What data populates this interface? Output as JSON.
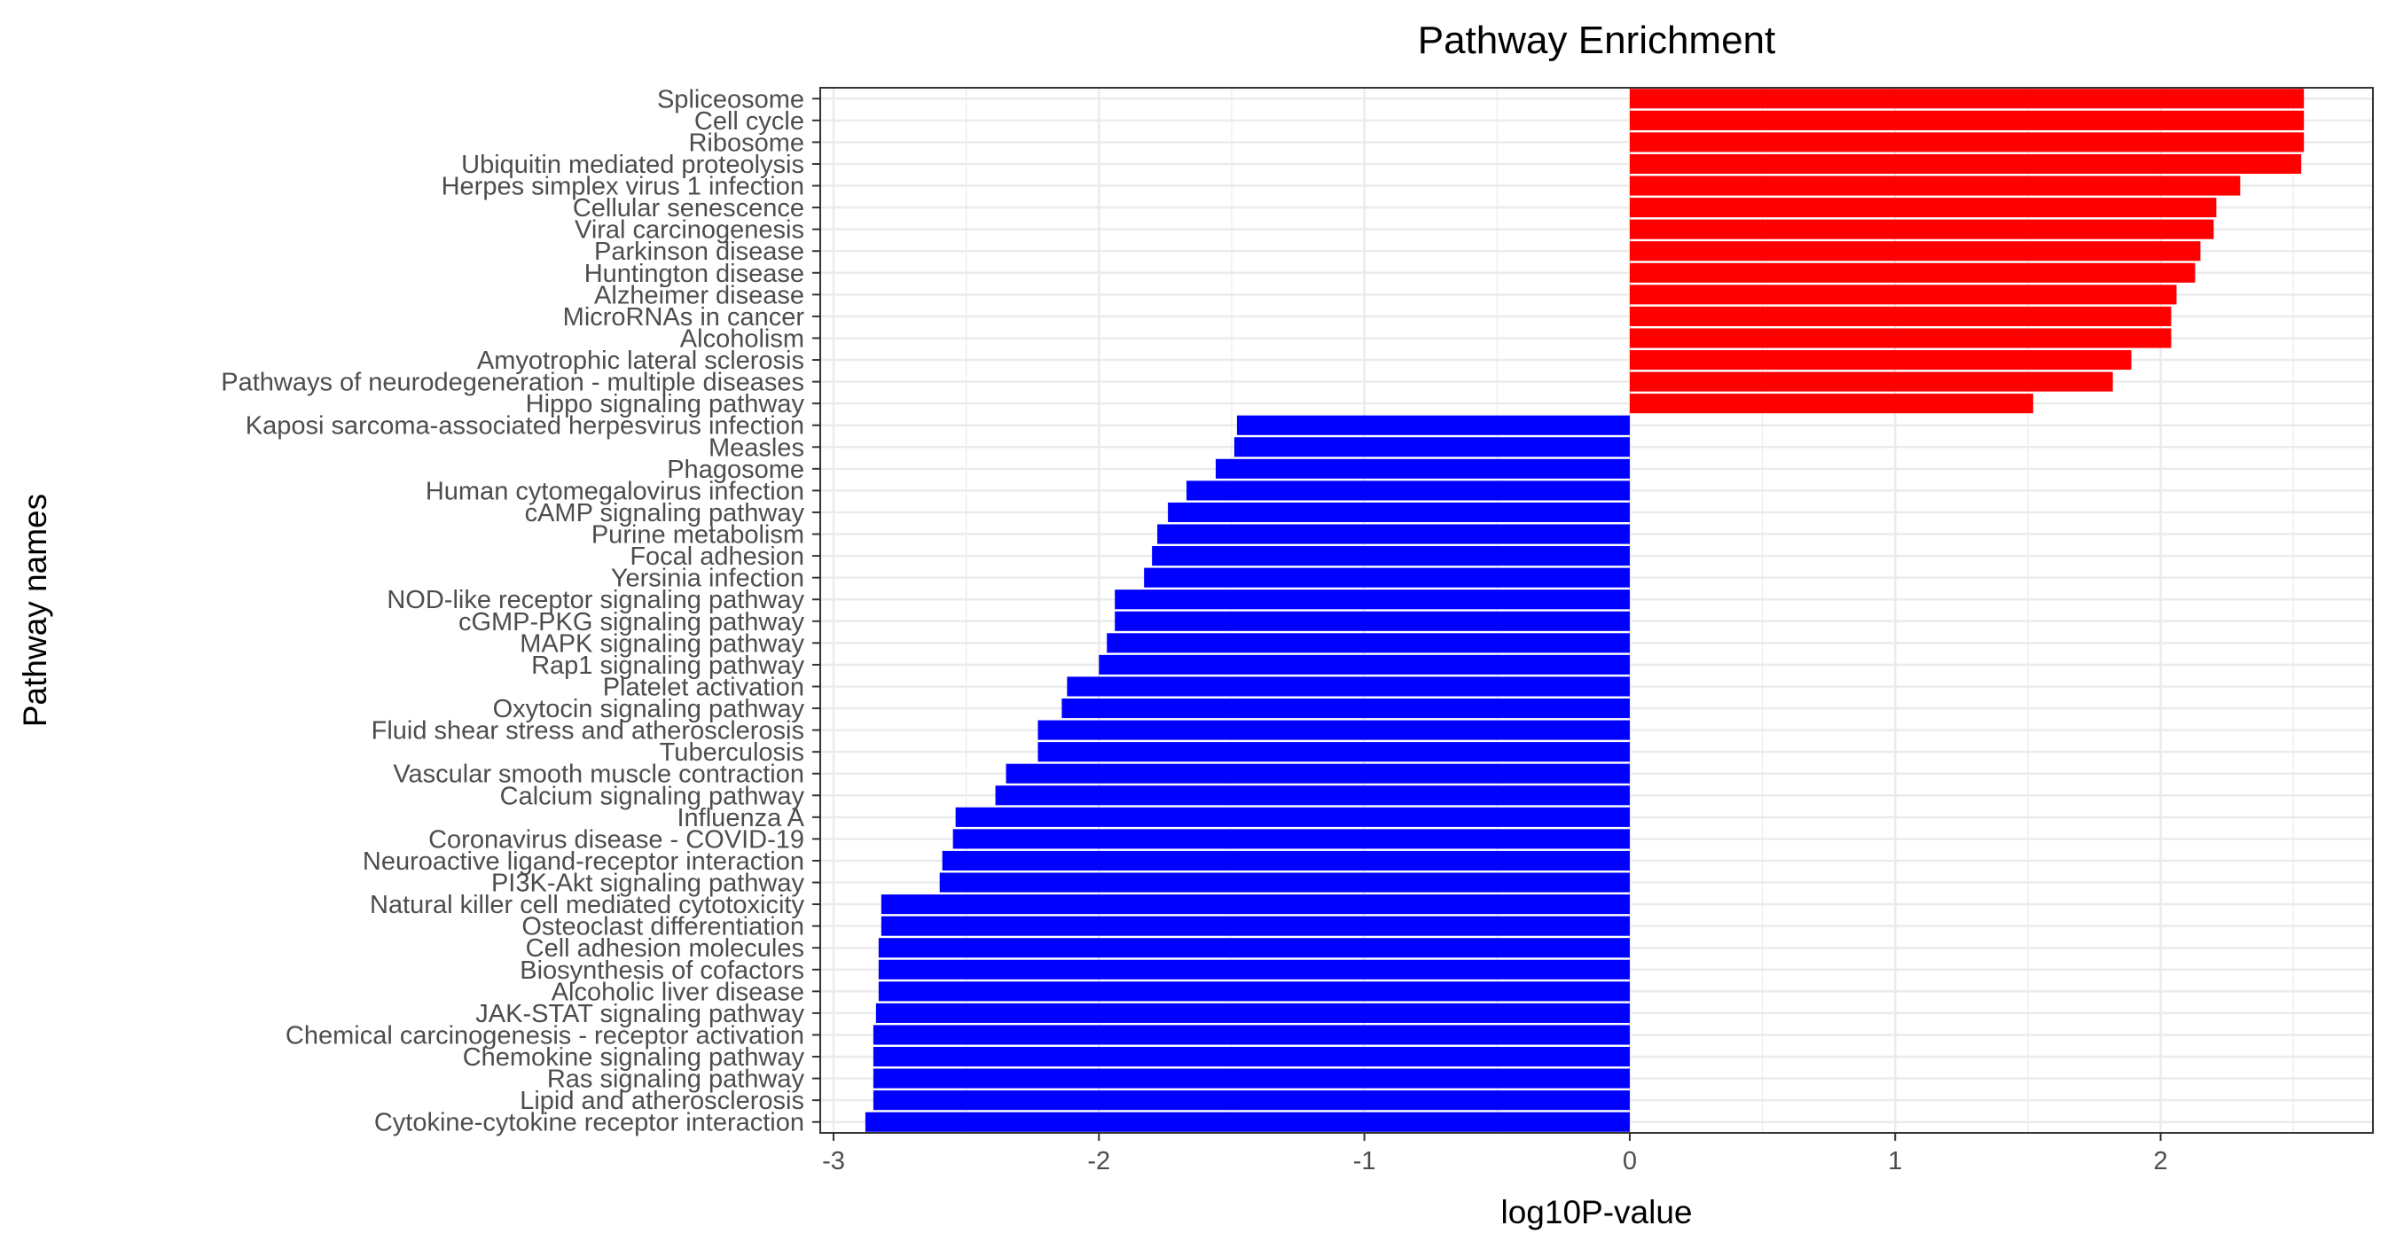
{
  "chart_data": {
    "type": "bar",
    "orientation": "horizontal",
    "title": "Pathway Enrichment",
    "xlabel": "log10P-value",
    "ylabel": "Pathway names",
    "xlim": [
      -3.05,
      2.8
    ],
    "xticks": [
      -3,
      -2,
      -1,
      0,
      1,
      2
    ],
    "grid": true,
    "legend": "none",
    "colors": {
      "positive": "#ff0000",
      "negative": "#0000ff"
    },
    "categories": [
      "Spliceosome",
      "Cell cycle",
      "Ribosome",
      "Ubiquitin mediated proteolysis",
      "Herpes simplex virus 1 infection",
      "Cellular senescence",
      "Viral carcinogenesis",
      "Parkinson disease",
      "Huntington disease",
      "Alzheimer disease",
      "MicroRNAs in cancer",
      "Alcoholism",
      "Amyotrophic lateral sclerosis",
      "Pathways of neurodegeneration - multiple diseases",
      "Hippo signaling pathway",
      "Kaposi sarcoma-associated herpesvirus infection",
      "Measles",
      "Phagosome",
      "Human cytomegalovirus infection",
      "cAMP signaling pathway",
      "Purine metabolism",
      "Focal adhesion",
      "Yersinia infection",
      "NOD-like receptor signaling pathway",
      "cGMP-PKG signaling pathway",
      "MAPK signaling pathway",
      "Rap1 signaling pathway",
      "Platelet activation",
      "Oxytocin signaling pathway",
      "Fluid shear stress and atherosclerosis",
      "Tuberculosis",
      "Vascular smooth muscle contraction",
      "Calcium signaling pathway",
      "Influenza A",
      "Coronavirus disease - COVID-19",
      "Neuroactive ligand-receptor interaction",
      "PI3K-Akt signaling pathway",
      "Natural killer cell mediated cytotoxicity",
      "Osteoclast differentiation",
      "Cell adhesion molecules",
      "Biosynthesis of cofactors",
      "Alcoholic liver disease",
      "JAK-STAT signaling pathway",
      "Chemical carcinogenesis - receptor activation",
      "Chemokine signaling pathway",
      "Ras signaling pathway",
      "Lipid and atherosclerosis",
      "Cytokine-cytokine receptor interaction"
    ],
    "values": [
      2.54,
      2.54,
      2.54,
      2.53,
      2.3,
      2.21,
      2.2,
      2.15,
      2.13,
      2.06,
      2.04,
      2.04,
      1.89,
      1.82,
      1.52,
      -1.48,
      -1.49,
      -1.56,
      -1.67,
      -1.74,
      -1.78,
      -1.8,
      -1.83,
      -1.94,
      -1.94,
      -1.97,
      -2.0,
      -2.12,
      -2.14,
      -2.23,
      -2.23,
      -2.35,
      -2.39,
      -2.54,
      -2.55,
      -2.59,
      -2.6,
      -2.82,
      -2.82,
      -2.83,
      -2.83,
      -2.83,
      -2.84,
      -2.85,
      -2.85,
      -2.85,
      -2.85,
      -2.88
    ]
  }
}
